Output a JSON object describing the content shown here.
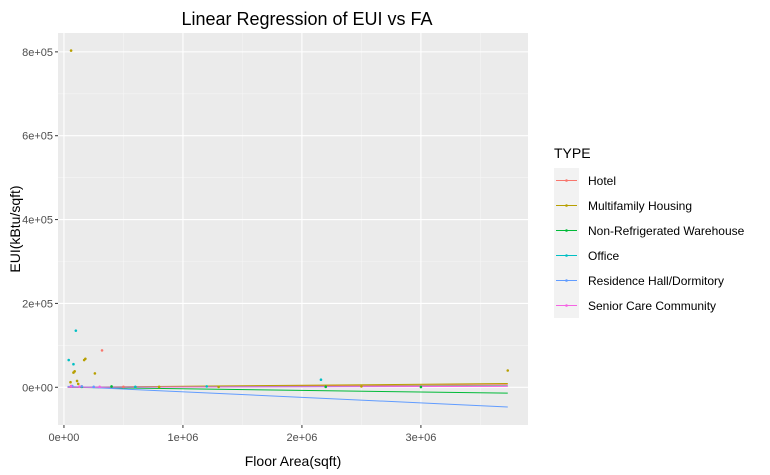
{
  "chart_data": {
    "type": "scatter",
    "title": "Linear Regression of EUI vs FA",
    "xlabel": "Floor Area(sqft)",
    "ylabel": "EUI(kBtu/sqft)",
    "xlim": [
      -50000,
      3900000
    ],
    "ylim": [
      -90000,
      845000
    ],
    "x_ticks": [
      {
        "value": 0,
        "label": "0e+00"
      },
      {
        "value": 1000000,
        "label": "1e+06"
      },
      {
        "value": 2000000,
        "label": "2e+06"
      },
      {
        "value": 3000000,
        "label": "3e+06"
      }
    ],
    "y_ticks": [
      {
        "value": 0,
        "label": "0e+00"
      },
      {
        "value": 200000,
        "label": "2e+05"
      },
      {
        "value": 400000,
        "label": "4e+05"
      },
      {
        "value": 600000,
        "label": "6e+05"
      },
      {
        "value": 800000,
        "label": "8e+05"
      }
    ],
    "grid": true,
    "legend": {
      "title": "TYPE",
      "position": "right"
    },
    "series": [
      {
        "name": "Hotel",
        "color": "#F8766D",
        "points": [
          [
            320000,
            88000
          ],
          [
            60000,
            3000
          ],
          [
            150000,
            2000
          ],
          [
            500000,
            1000
          ]
        ],
        "fit": [
          [
            30000,
            0
          ],
          [
            3730000,
            6000
          ]
        ]
      },
      {
        "name": "Multifamily Housing",
        "color": "#B79F00",
        "points": [
          [
            60000,
            803000
          ],
          [
            180000,
            68000
          ],
          [
            170000,
            65000
          ],
          [
            260000,
            33000
          ],
          [
            90000,
            38000
          ],
          [
            80000,
            35000
          ],
          [
            55000,
            12000
          ],
          [
            110000,
            15000
          ],
          [
            120000,
            8000
          ],
          [
            3730000,
            40000
          ],
          [
            2500000,
            2000
          ],
          [
            1300000,
            1000
          ],
          [
            800000,
            1000
          ]
        ],
        "fit": [
          [
            30000,
            0
          ],
          [
            3730000,
            9000
          ]
        ]
      },
      {
        "name": "Non-Refrigerated Warehouse",
        "color": "#00BA38",
        "points": [
          [
            150000,
            1000
          ],
          [
            400000,
            2000
          ],
          [
            2200000,
            1000
          ],
          [
            3000000,
            500
          ]
        ],
        "fit": [
          [
            30000,
            0
          ],
          [
            3730000,
            -14000
          ]
        ]
      },
      {
        "name": "Office",
        "color": "#00BFC4",
        "points": [
          [
            100000,
            135000
          ],
          [
            40000,
            65000
          ],
          [
            80000,
            55000
          ],
          [
            2160000,
            18000
          ],
          [
            1200000,
            2000
          ],
          [
            600000,
            1000
          ]
        ],
        "fit": [
          [
            30000,
            0
          ],
          [
            3730000,
            3000
          ]
        ]
      },
      {
        "name": "Residence Hall/Dormitory",
        "color": "#619CFF",
        "points": [
          [
            70000,
            3000
          ],
          [
            150000,
            2000
          ],
          [
            250000,
            1000
          ]
        ],
        "fit": [
          [
            30000,
            2000
          ],
          [
            3730000,
            -47000
          ]
        ]
      },
      {
        "name": "Senior Care Community",
        "color": "#F564E3",
        "points": [
          [
            60000,
            2000
          ],
          [
            130000,
            1500
          ],
          [
            300000,
            1000
          ]
        ],
        "fit": [
          [
            30000,
            0
          ],
          [
            3730000,
            2000
          ]
        ]
      }
    ]
  }
}
